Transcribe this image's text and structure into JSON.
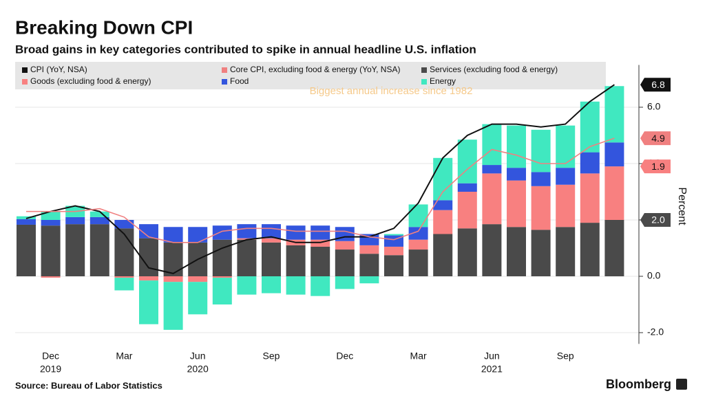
{
  "chart_data": {
    "type": "bar",
    "title": "Breaking Down CPI",
    "subtitle": "Broad gains in key categories contributed to spike in annual headline U.S. inflation",
    "y_axis_label": "Percent",
    "source": "Source: Bureau of Labor Statistics",
    "brand": "Bloomberg",
    "annotation": "Biggest annual increase since 1982",
    "categories": [
      null,
      "Dec",
      null,
      null,
      "Mar",
      null,
      null,
      "Jun",
      null,
      null,
      "Sep",
      null,
      null,
      "Dec",
      null,
      null,
      "Mar",
      null,
      null,
      "Jun",
      null,
      null,
      "Sep",
      null,
      null
    ],
    "years": [
      null,
      "2019",
      null,
      null,
      null,
      null,
      null,
      "2020",
      null,
      null,
      null,
      null,
      null,
      null,
      null,
      null,
      null,
      null,
      null,
      "2021",
      null,
      null,
      null,
      null,
      null
    ],
    "ylim": [
      -2.4,
      7.5
    ],
    "yticks": [
      {
        "value": -2,
        "label": "-2.0"
      },
      {
        "value": 0,
        "label": "0.0"
      },
      {
        "value": 2,
        "label": "2.0"
      },
      {
        "value": 4,
        "label": "4.0"
      },
      {
        "value": 6,
        "label": "6.0"
      }
    ],
    "grid": true,
    "series": [
      {
        "name": "CPI (YoY, NSA)",
        "type": "line",
        "color": "#111111",
        "values": [
          2.05,
          2.3,
          2.5,
          2.3,
          1.5,
          0.3,
          0.1,
          0.6,
          1.0,
          1.3,
          1.4,
          1.2,
          1.2,
          1.4,
          1.4,
          1.7,
          2.6,
          4.2,
          5.0,
          5.4,
          5.4,
          5.3,
          5.4,
          6.2,
          6.8
        ],
        "value_labels": [
          null,
          null,
          null,
          null,
          null,
          null,
          null,
          null,
          null,
          null,
          null,
          null,
          null,
          null,
          null,
          null,
          null,
          null,
          null,
          null,
          null,
          null,
          null,
          null,
          "6.8"
        ]
      },
      {
        "name": "Core CPI, excluding food & energy (YoY, NSA)",
        "type": "line",
        "color": "#f08080",
        "values": [
          2.3,
          2.3,
          2.3,
          2.4,
          2.1,
          1.4,
          1.2,
          1.2,
          1.6,
          1.7,
          1.7,
          1.6,
          1.6,
          1.6,
          1.4,
          1.3,
          1.6,
          3.0,
          3.8,
          4.5,
          4.3,
          4.0,
          4.0,
          4.6,
          4.9
        ],
        "value_labels": [
          null,
          null,
          null,
          null,
          null,
          null,
          null,
          null,
          null,
          null,
          null,
          null,
          null,
          null,
          null,
          null,
          null,
          null,
          null,
          null,
          null,
          null,
          null,
          null,
          "4.9"
        ]
      },
      {
        "name": "Services (excluding food & energy)",
        "type": "bar",
        "color": "#4a4a4a",
        "values": [
          1.83,
          1.8,
          1.85,
          1.85,
          1.7,
          1.35,
          1.2,
          1.2,
          1.3,
          1.3,
          1.2,
          1.1,
          1.05,
          0.95,
          0.8,
          0.75,
          0.95,
          1.5,
          1.7,
          1.85,
          1.75,
          1.65,
          1.75,
          1.9,
          2.0
        ],
        "value_labels": [
          null,
          null,
          null,
          null,
          null,
          null,
          null,
          null,
          null,
          null,
          null,
          null,
          null,
          null,
          null,
          null,
          null,
          null,
          null,
          null,
          null,
          null,
          null,
          null,
          "2.0"
        ]
      },
      {
        "name": "Goods (excluding food & energy)",
        "type": "bar",
        "color": "#f88080",
        "values": [
          0.0,
          -0.05,
          0.0,
          0.0,
          -0.05,
          -0.15,
          -0.2,
          -0.2,
          -0.05,
          0.05,
          0.15,
          0.2,
          0.25,
          0.3,
          0.3,
          0.3,
          0.35,
          0.85,
          1.3,
          1.8,
          1.65,
          1.55,
          1.5,
          1.75,
          1.9
        ],
        "value_labels": [
          null,
          null,
          null,
          null,
          null,
          null,
          null,
          null,
          null,
          null,
          null,
          null,
          null,
          null,
          null,
          null,
          null,
          null,
          null,
          null,
          null,
          null,
          null,
          null,
          "1.9"
        ]
      },
      {
        "name": "Food",
        "type": "bar",
        "color": "#3355dd",
        "values": [
          0.2,
          0.2,
          0.25,
          0.25,
          0.3,
          0.5,
          0.55,
          0.55,
          0.5,
          0.5,
          0.5,
          0.5,
          0.5,
          0.5,
          0.4,
          0.4,
          0.45,
          0.35,
          0.3,
          0.3,
          0.45,
          0.5,
          0.6,
          0.75,
          0.85
        ]
      },
      {
        "name": "Energy",
        "type": "bar",
        "color": "#40e8c0",
        "values": [
          0.1,
          0.3,
          0.4,
          0.2,
          -0.45,
          -1.55,
          -1.7,
          -1.15,
          -0.95,
          -0.65,
          -0.6,
          -0.65,
          -0.7,
          -0.45,
          -0.25,
          0.05,
          0.8,
          1.5,
          1.55,
          1.45,
          1.5,
          1.5,
          1.5,
          1.8,
          2.0
        ]
      }
    ]
  }
}
